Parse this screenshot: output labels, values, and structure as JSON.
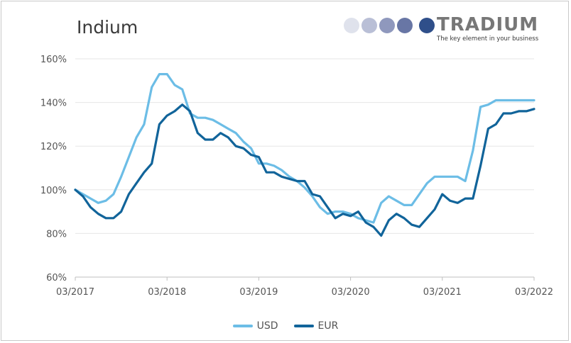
{
  "chart_data": {
    "type": "line",
    "title": "Indium",
    "xlabel": "",
    "ylabel": "",
    "x_ticks": [
      "03/2017",
      "03/2018",
      "03/2019",
      "03/2020",
      "03/2021",
      "03/2022"
    ],
    "y_ticks": [
      "60%",
      "80%",
      "100%",
      "120%",
      "140%",
      "160%"
    ],
    "ylim": [
      60,
      160
    ],
    "grid": "horizontal",
    "legend_placement": "bottom",
    "series": [
      {
        "name": "USD",
        "color": "#6cbde6",
        "values": [
          100,
          98,
          96,
          94,
          95,
          98,
          106,
          115,
          124,
          130,
          147,
          153,
          153,
          148,
          146,
          135,
          133,
          133,
          132,
          130,
          128,
          126,
          122,
          119,
          112,
          112,
          111,
          109,
          106,
          104,
          101,
          97,
          92,
          89,
          90,
          90,
          89,
          87,
          86,
          85,
          94,
          97,
          95,
          93,
          93,
          98,
          103,
          106,
          106,
          106,
          106,
          104,
          118,
          138,
          139,
          141,
          141,
          141,
          141,
          141,
          141
        ]
      },
      {
        "name": "EUR",
        "color": "#11649a",
        "values": [
          100,
          97,
          92,
          89,
          87,
          87,
          90,
          98,
          103,
          108,
          112,
          130,
          134,
          136,
          139,
          136,
          126,
          123,
          123,
          126,
          124,
          120,
          119,
          116,
          115,
          108,
          108,
          106,
          105,
          104,
          104,
          98,
          97,
          92,
          87,
          89,
          88,
          90,
          85,
          83,
          79,
          86,
          89,
          87,
          84,
          83,
          87,
          91,
          98,
          95,
          94,
          96,
          96,
          111,
          128,
          130,
          135,
          135,
          136,
          136,
          137
        ]
      }
    ]
  },
  "logo": {
    "wordmark": "TRADIUM",
    "tagline": "The key element in your business",
    "dot_colors": [
      "#dfe2ec",
      "#b9bfd6",
      "#8f98bd",
      "#6876a5",
      "#2f4f8a"
    ]
  }
}
